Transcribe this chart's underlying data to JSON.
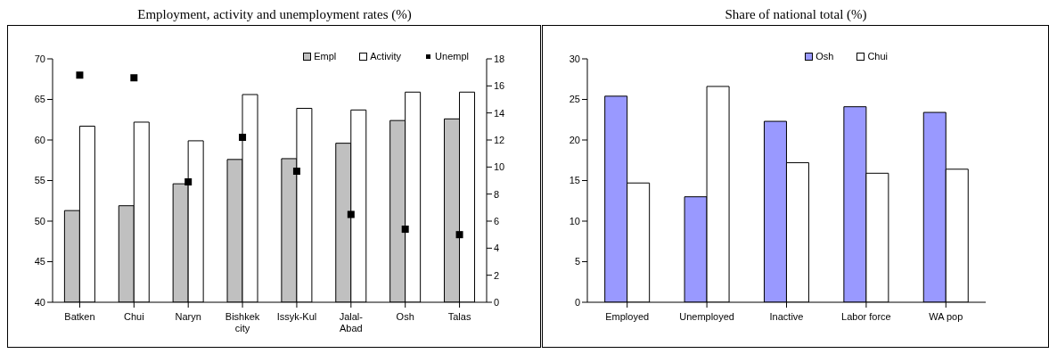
{
  "chart_data": [
    {
      "type": "bar",
      "title": "Employment, activity and unemployment rates (%)",
      "categories": [
        "Batken",
        "Chui",
        "Naryn",
        "Bishkek city",
        "Issyk-Kul",
        "Jalal-Abad",
        "Osh",
        "Talas"
      ],
      "series": [
        {
          "name": "Empl",
          "color": "#c0c0c0",
          "values": [
            51.3,
            51.9,
            54.6,
            57.6,
            57.7,
            59.6,
            62.4,
            62.6
          ]
        },
        {
          "name": "Activity",
          "color": "#ffffff",
          "values": [
            61.7,
            62.2,
            59.9,
            65.6,
            63.9,
            63.7,
            65.9,
            65.9
          ]
        },
        {
          "name": "Unempl",
          "type": "scatter",
          "axis": "y2",
          "marker": "square",
          "color": "#000000",
          "values": [
            16.8,
            16.6,
            8.9,
            12.2,
            9.7,
            6.5,
            5.4,
            5.0
          ]
        }
      ],
      "ylim": [
        40,
        70
      ],
      "yticks": [
        40,
        45,
        50,
        55,
        60,
        65,
        70
      ],
      "y2lim": [
        0,
        18
      ],
      "y2ticks": [
        0,
        2,
        4,
        6,
        8,
        10,
        12,
        14,
        16,
        18
      ],
      "legend": "top right"
    },
    {
      "type": "bar",
      "title": "Share of national total (%)",
      "categories": [
        "Employed",
        "Unemployed",
        "Inactive",
        "Labor force",
        "WA pop"
      ],
      "series": [
        {
          "name": "Osh",
          "color": "#9999ff",
          "values": [
            25.4,
            13.0,
            22.3,
            24.1,
            23.4
          ]
        },
        {
          "name": "Chui",
          "color": "#ffffff",
          "values": [
            14.7,
            26.6,
            17.2,
            15.9,
            16.4
          ]
        }
      ],
      "ylim": [
        0,
        30
      ],
      "yticks": [
        0,
        5,
        10,
        15,
        20,
        25,
        30
      ],
      "legend": "top right"
    }
  ]
}
